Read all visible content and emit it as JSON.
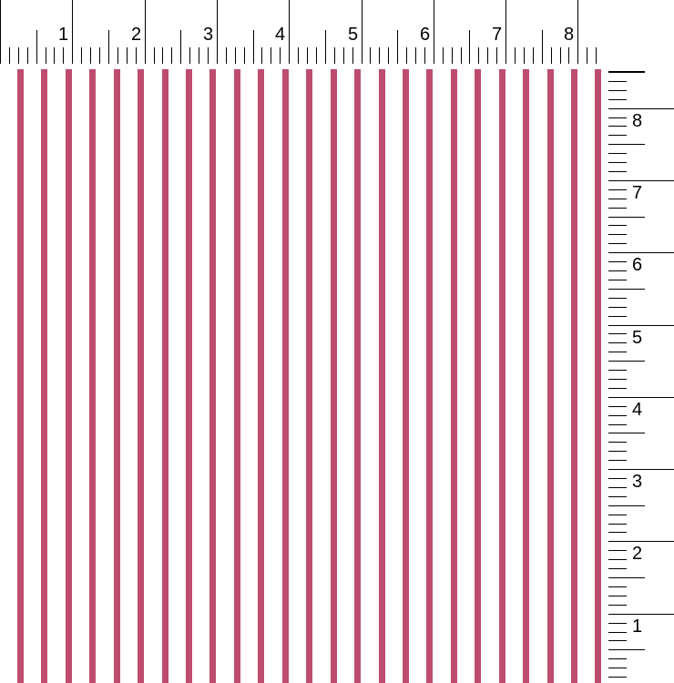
{
  "swatch": {
    "pattern": "vertical pinstripes",
    "stripe_color": "#c9577a",
    "background_color": "#ffffff",
    "stripes_per_inch": 3
  },
  "top_ruler": {
    "labels": [
      "1",
      "2",
      "3",
      "4",
      "5",
      "6",
      "7",
      "8"
    ]
  },
  "side_ruler": {
    "labels": [
      "8",
      "7",
      "6",
      "5",
      "4",
      "3",
      "2",
      "1"
    ]
  }
}
